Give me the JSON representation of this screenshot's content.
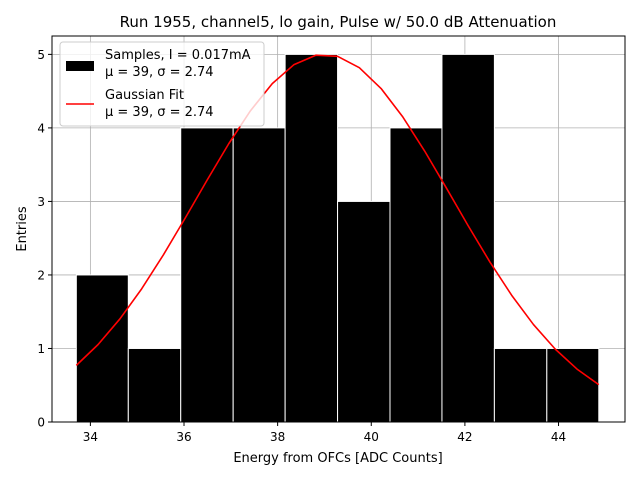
{
  "chart_data": {
    "type": "bar",
    "title": "Run 1955, channel5, lo gain, Pulse w/ 50.0 dB Attenuation",
    "xlabel": "Energy from OFCs [ADC Counts]",
    "ylabel": "Entries",
    "xlim": [
      33.18,
      45.42
    ],
    "ylim": [
      0,
      5.25
    ],
    "xticks": [
      34,
      36,
      38,
      40,
      42,
      44
    ],
    "yticks": [
      0,
      1,
      2,
      3,
      4,
      5
    ],
    "grid": true,
    "legend_position": "top-left",
    "bins": [
      {
        "x0": 33.7,
        "x1": 34.81,
        "count": 2
      },
      {
        "x0": 34.81,
        "x1": 35.93,
        "count": 1
      },
      {
        "x0": 35.93,
        "x1": 37.05,
        "count": 4
      },
      {
        "x0": 37.05,
        "x1": 38.16,
        "count": 4
      },
      {
        "x0": 38.16,
        "x1": 39.28,
        "count": 5
      },
      {
        "x0": 39.28,
        "x1": 40.4,
        "count": 3
      },
      {
        "x0": 40.4,
        "x1": 41.51,
        "count": 4
      },
      {
        "x0": 41.51,
        "x1": 42.63,
        "count": 5
      },
      {
        "x0": 42.63,
        "x1": 43.75,
        "count": 1
      },
      {
        "x0": 43.75,
        "x1": 44.86,
        "count": 1
      }
    ],
    "series": [
      {
        "name": "Samples",
        "type": "histogram",
        "color": "#000000",
        "legend_line1": "Samples, I = 0.017mA",
        "legend_line2": "μ = 39, σ = 2.74"
      },
      {
        "name": "Gaussian Fit",
        "type": "line",
        "color": "#ff0000",
        "legend_line1": "Gaussian Fit",
        "legend_line2": "μ = 39, σ = 2.74",
        "fit": {
          "amplitude": 5.0,
          "mean": 39.0,
          "sigma": 2.74,
          "x_range": [
            33.7,
            44.86
          ],
          "samples": 24
        }
      }
    ]
  }
}
